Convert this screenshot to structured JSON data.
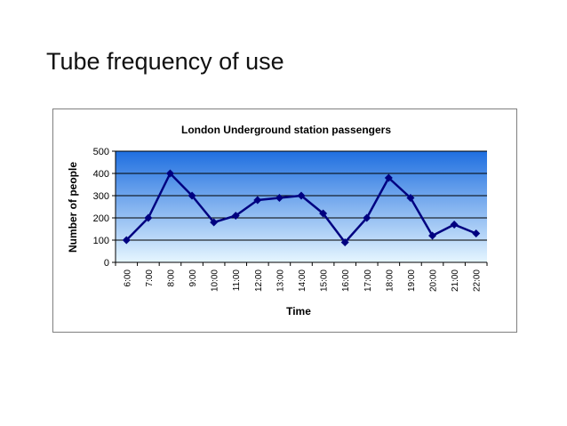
{
  "slide": {
    "title": "Tube frequency of use"
  },
  "chart_data": {
    "type": "line",
    "title": "London Underground station passengers",
    "xlabel": "Time",
    "ylabel": "Number of people",
    "categories": [
      "6:00",
      "7:00",
      "8:00",
      "9:00",
      "10:00",
      "11:00",
      "12:00",
      "13:00",
      "14:00",
      "15:00",
      "16:00",
      "17:00",
      "18:00",
      "19:00",
      "20:00",
      "21:00",
      "22:00"
    ],
    "series": [
      {
        "values": [
          100,
          200,
          400,
          300,
          180,
          210,
          280,
          290,
          300,
          220,
          90,
          200,
          380,
          290,
          120,
          170,
          130
        ]
      }
    ],
    "ylim": [
      0,
      500
    ],
    "yticks": [
      0,
      100,
      200,
      300,
      400,
      500
    ],
    "grid": true,
    "legend": "none",
    "colors": {
      "line": "#000080",
      "marker": "#000080",
      "gridline": "#000000",
      "plot_bg_top": "#1f6fe0",
      "plot_bg_bottom": "#e6f6ff"
    }
  }
}
